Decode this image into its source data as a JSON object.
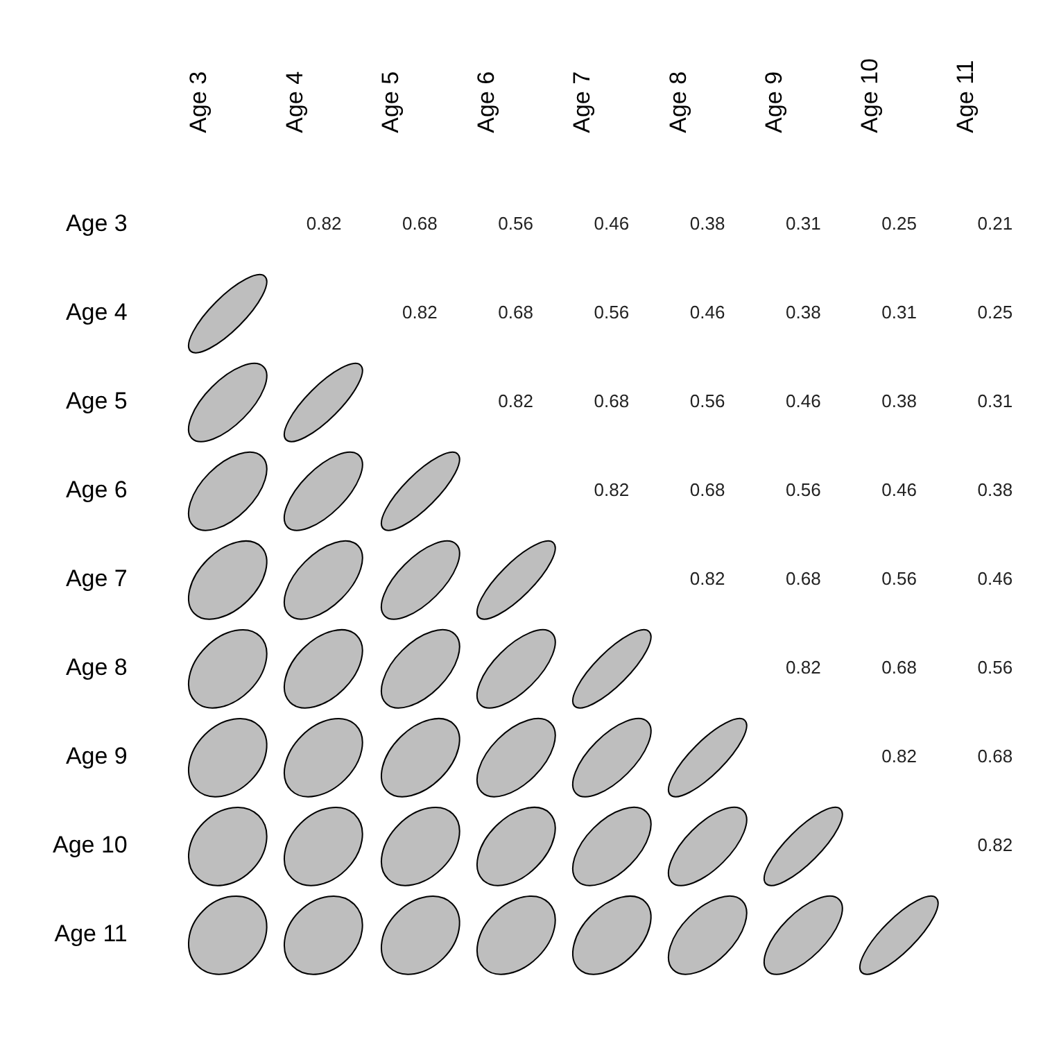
{
  "chart_data": {
    "type": "heatmap",
    "categories": [
      "Age 3",
      "Age 4",
      "Age 5",
      "Age 6",
      "Age 7",
      "Age 8",
      "Age 9",
      "Age 10",
      "Age 11"
    ],
    "y_categories": [
      "Age 3",
      "Age 4",
      "Age 5",
      "Age 6",
      "Age 7",
      "Age 8",
      "Age 9",
      "Age 10",
      "Age 11"
    ],
    "color": "#bebebe",
    "data_labels": true,
    "cells": [
      [
        null,
        0.82,
        0.68,
        0.56,
        0.46,
        0.38,
        0.31,
        0.25,
        0.21
      ],
      [
        null,
        null,
        0.82,
        0.68,
        0.56,
        0.46,
        0.38,
        0.31,
        0.25
      ],
      [
        null,
        null,
        null,
        0.82,
        0.68,
        0.56,
        0.46,
        0.38,
        0.31
      ],
      [
        null,
        null,
        null,
        null,
        0.82,
        0.68,
        0.56,
        0.46,
        0.38
      ],
      [
        null,
        null,
        null,
        null,
        null,
        0.82,
        0.68,
        0.56,
        0.46
      ],
      [
        null,
        null,
        null,
        null,
        null,
        null,
        0.82,
        0.68,
        0.56
      ],
      [
        null,
        null,
        null,
        null,
        null,
        null,
        null,
        0.82,
        0.68
      ],
      [
        null,
        null,
        null,
        null,
        null,
        null,
        null,
        null,
        0.82
      ],
      [
        null,
        null,
        null,
        null,
        null,
        null,
        null,
        null,
        null
      ]
    ]
  }
}
